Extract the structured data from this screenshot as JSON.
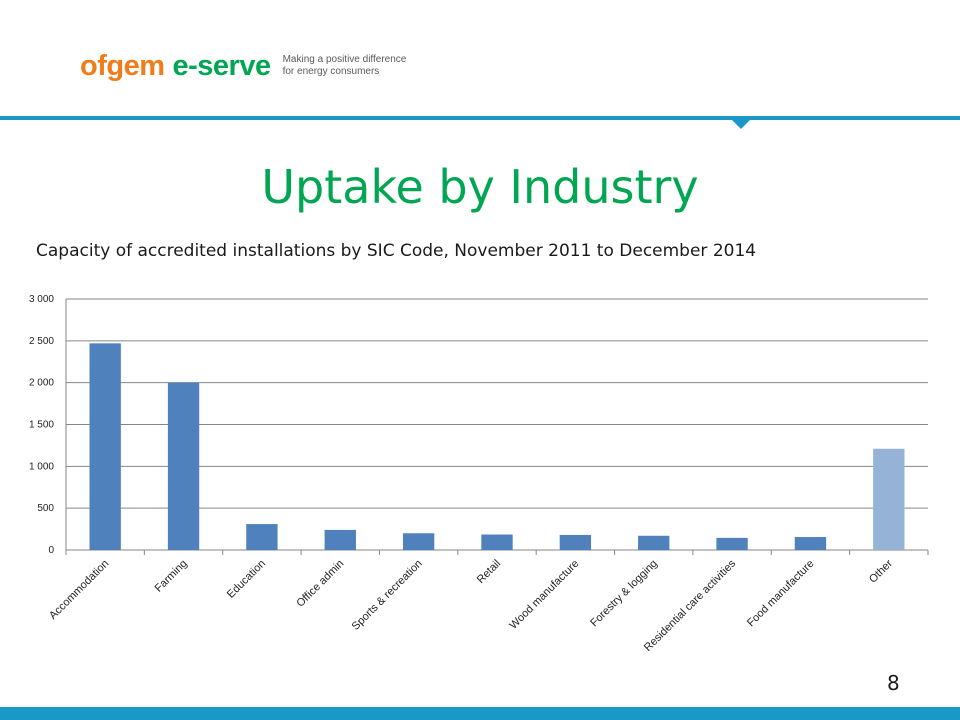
{
  "brand": {
    "name_a": "ofgem",
    "name_b": "e-serve",
    "tagline_1": "Making a positive difference",
    "tagline_2": "for energy consumers"
  },
  "slide": {
    "title": "Uptake by Industry",
    "subtitle": "Capacity of accredited installations by SIC Code,  November 2011 to December 2014",
    "page_number": "8"
  },
  "colors": {
    "accent": "#1a98c7",
    "title": "#00a651",
    "logo_orange": "#f07d1a",
    "bar": "#4f81bd",
    "bar_highlight": "#95b3d7"
  },
  "chart_data": {
    "type": "bar",
    "title": "",
    "xlabel": "",
    "ylabel": "",
    "ylim": [
      0,
      3000
    ],
    "yticks": [
      0,
      500,
      1000,
      1500,
      2000,
      2500,
      3000
    ],
    "ytick_labels": [
      "0",
      "500",
      "1 000",
      "1 500",
      "2 000",
      "2 500",
      "3 000"
    ],
    "grid": true,
    "legend": "none",
    "categories": [
      "Accommodation",
      "Farming",
      "Education",
      "Office admin",
      "Sports & recreation",
      "Retail",
      "Wood manufacture",
      "Forestry & logging",
      "Residential care activities",
      "Food manufacture",
      "Other"
    ],
    "values": [
      2470,
      2000,
      310,
      240,
      200,
      185,
      180,
      170,
      145,
      155,
      1210
    ],
    "highlight_category": "Other"
  }
}
